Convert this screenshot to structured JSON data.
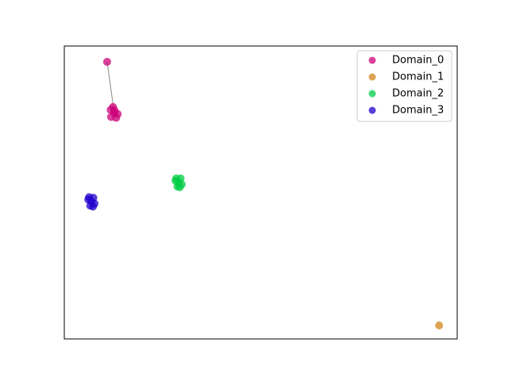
{
  "chart_data": {
    "type": "scatter",
    "xlim": [
      0,
      1
    ],
    "ylim": [
      0,
      1
    ],
    "legend": "upper right",
    "series": [
      {
        "name": "Domain_0",
        "color": "#cc0077",
        "x": [
          0.109,
          0.127,
          0.118,
          0.136,
          0.124,
          0.132,
          0.119,
          0.128
        ],
        "y": [
          0.946,
          0.772,
          0.782,
          0.768,
          0.792,
          0.755,
          0.758,
          0.78
        ]
      },
      {
        "name": "Domain_1",
        "color": "#d4861a",
        "x": [
          0.954
        ],
        "y": [
          0.046
        ]
      },
      {
        "name": "Domain_2",
        "color": "#00cc44",
        "x": [
          0.291,
          0.283,
          0.299,
          0.288,
          0.296,
          0.285,
          0.294
        ],
        "y": [
          0.534,
          0.54,
          0.528,
          0.52,
          0.548,
          0.548,
          0.518
        ]
      },
      {
        "name": "Domain_3",
        "color": "#2200cc",
        "x": [
          0.069,
          0.061,
          0.077,
          0.066,
          0.074,
          0.063,
          0.073
        ],
        "y": [
          0.469,
          0.476,
          0.462,
          0.455,
          0.482,
          0.484,
          0.452
        ]
      }
    ],
    "edges": [
      {
        "series": 0,
        "from": 0,
        "to": 1
      }
    ]
  }
}
